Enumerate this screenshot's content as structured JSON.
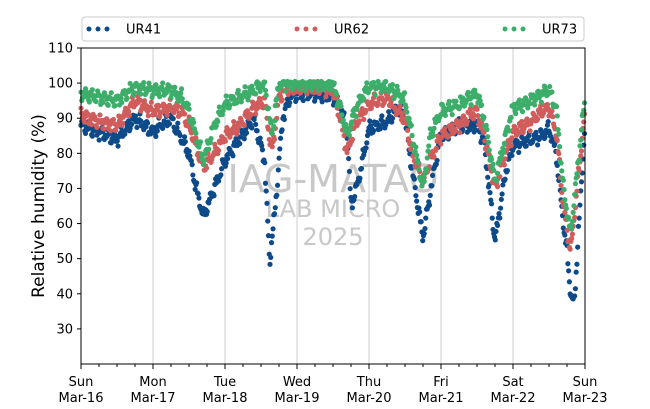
{
  "chart_data": {
    "type": "scatter",
    "title": "",
    "xlabel": "",
    "ylabel": "Relative humidity (%)",
    "ylim": [
      20,
      110
    ],
    "yticks": [
      30,
      40,
      50,
      60,
      70,
      80,
      90,
      100,
      110
    ],
    "xlim": [
      0,
      7
    ],
    "x_unit": "days",
    "x_start": "2025-03-16",
    "xtick_labels": [
      {
        "day": "Sun",
        "date": "Mar-16"
      },
      {
        "day": "Mon",
        "date": "Mar-17"
      },
      {
        "day": "Tue",
        "date": "Mar-18"
      },
      {
        "day": "Wed",
        "date": "Mar-19"
      },
      {
        "day": "Thu",
        "date": "Mar-20"
      },
      {
        "day": "Fri",
        "date": "Mar-21"
      },
      {
        "day": "Sat",
        "date": "Mar-22"
      },
      {
        "day": "Sun",
        "date": "Mar-23"
      }
    ],
    "grid": "vertical",
    "legend_position": "top",
    "watermark": [
      "IAG-MATAO",
      "LAB MICRO",
      "2025"
    ],
    "series": [
      {
        "name": "UR41",
        "color": "#0d4a8a",
        "x": [
          0,
          0.25,
          0.5,
          0.75,
          1.0,
          1.1,
          1.25,
          1.35,
          1.5,
          1.6,
          1.7,
          1.85,
          2.0,
          2.2,
          2.4,
          2.55,
          2.62,
          2.7,
          2.8,
          2.9,
          3.0,
          3.25,
          3.5,
          3.6,
          3.7,
          3.75,
          3.85,
          4.0,
          4.25,
          4.4,
          4.5,
          4.6,
          4.75,
          4.9,
          5.0,
          5.25,
          5.5,
          5.6,
          5.75,
          5.9,
          6.0,
          6.25,
          6.4,
          6.5,
          6.6,
          6.7,
          6.75,
          6.8,
          6.85,
          7.0
        ],
        "y": [
          88,
          86,
          84,
          90,
          86,
          88,
          90,
          86,
          80,
          70,
          62,
          70,
          78,
          84,
          90,
          78,
          49,
          65,
          90,
          96,
          97,
          97,
          96,
          94,
          85,
          65,
          72,
          87,
          89,
          93,
          90,
          75,
          56,
          75,
          85,
          88,
          88,
          83,
          55,
          75,
          82,
          84,
          85,
          87,
          80,
          60,
          52,
          40,
          37,
          89
        ]
      },
      {
        "name": "UR62",
        "color": "#d05c5c",
        "x": [
          0,
          0.25,
          0.5,
          0.75,
          1.0,
          1.25,
          1.4,
          1.5,
          1.6,
          1.7,
          1.85,
          2.0,
          2.2,
          2.4,
          2.55,
          2.65,
          2.75,
          2.9,
          3.0,
          3.25,
          3.5,
          3.6,
          3.7,
          3.8,
          3.9,
          4.0,
          4.25,
          4.4,
          4.5,
          4.6,
          4.75,
          4.85,
          5.0,
          5.25,
          5.4,
          5.5,
          5.6,
          5.75,
          5.9,
          6.0,
          6.25,
          6.4,
          6.5,
          6.6,
          6.7,
          6.8,
          7.0
        ],
        "y": [
          91,
          89,
          88,
          95,
          92,
          93,
          92,
          88,
          82,
          76,
          80,
          85,
          88,
          93,
          95,
          80,
          96,
          99,
          99,
          99,
          98,
          90,
          80,
          88,
          91,
          94,
          96,
          92,
          90,
          80,
          72,
          78,
          85,
          88,
          91,
          92,
          85,
          70,
          80,
          86,
          89,
          92,
          93,
          86,
          65,
          52,
          92
        ]
      },
      {
        "name": "UR73",
        "color": "#3cae6a",
        "x": [
          0,
          0.25,
          0.5,
          0.75,
          1.0,
          1.25,
          1.4,
          1.5,
          1.6,
          1.7,
          1.85,
          2.0,
          2.2,
          2.4,
          2.55,
          2.65,
          2.75,
          2.9,
          3.0,
          3.25,
          3.5,
          3.6,
          3.7,
          3.8,
          3.9,
          4.0,
          4.25,
          4.4,
          4.5,
          4.6,
          4.75,
          4.85,
          5.0,
          5.25,
          5.4,
          5.5,
          5.6,
          5.75,
          5.9,
          6.0,
          6.25,
          6.4,
          6.5,
          6.6,
          6.7,
          6.8,
          7.0
        ],
        "y": [
          97,
          96,
          95,
          99,
          98,
          98,
          96,
          92,
          85,
          78,
          88,
          94,
          96,
          98,
          100,
          85,
          100,
          100,
          100,
          100,
          100,
          93,
          85,
          92,
          96,
          99,
          99,
          97,
          95,
          85,
          70,
          85,
          92,
          94,
          96,
          97,
          90,
          72,
          85,
          93,
          95,
          97,
          98,
          93,
          70,
          57,
          96
        ]
      }
    ]
  }
}
